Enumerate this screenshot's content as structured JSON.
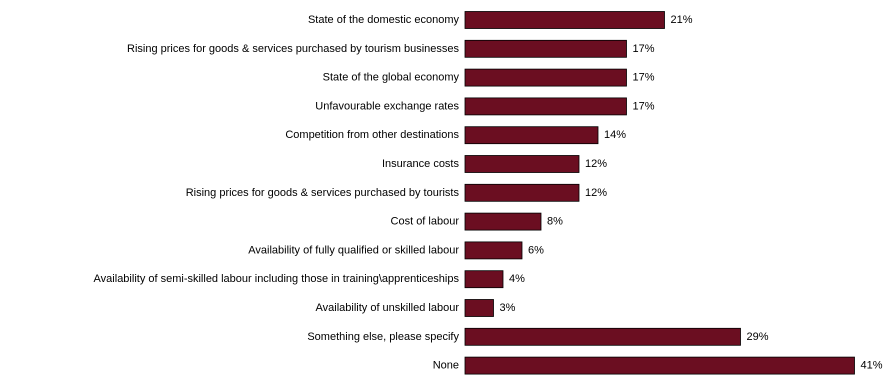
{
  "chart_data": {
    "type": "bar",
    "orientation": "horizontal",
    "title": "",
    "xlabel": "",
    "ylabel": "",
    "xlim": [
      0,
      41
    ],
    "grid": false,
    "legend": "none",
    "value_suffix": "%",
    "bar_color": "#6b0e21",
    "bar_edge_color": "#000000",
    "categories": [
      "State of the domestic economy",
      "Rising prices for goods & services purchased by tourism businesses",
      "State of the global economy",
      "Unfavourable exchange rates",
      "Competition from other destinations",
      "Insurance costs",
      "Rising prices for goods & services purchased by tourists",
      "Cost of labour",
      "Availability of fully qualified or skilled labour",
      "Availability of semi-skilled labour including those in training\\apprenticeships",
      "Availability of unskilled labour",
      "Something else, please specify",
      "None"
    ],
    "values": [
      21,
      17,
      17,
      17,
      14,
      12,
      12,
      8,
      6,
      4,
      3,
      29,
      41
    ],
    "data_labels": [
      "21%",
      "17%",
      "17%",
      "17%",
      "14%",
      "12%",
      "12%",
      "8%",
      "6%",
      "4%",
      "3%",
      "29%",
      "41%"
    ]
  }
}
